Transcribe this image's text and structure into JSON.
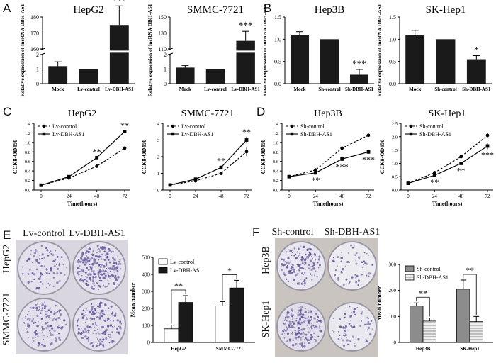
{
  "panel_labels": {
    "a": "A",
    "b": "B",
    "c": "C",
    "d": "D",
    "e": "E",
    "f": "F"
  },
  "colors": {
    "black": "#1a1a1a",
    "white": "#ffffff",
    "gray_bar": "#8c8c8c",
    "hatch": "#d8d8d8",
    "dish_purple": "#6a5a9c",
    "dish_bg": "#e4e1ec"
  },
  "chart_data": [
    {
      "id": "A1",
      "type": "bar",
      "title": "HepG2",
      "ylabel": "Relative expression of lncRNA DBH-AS1",
      "categories": [
        "Mock",
        "Lv-control",
        "Lv-DBH-AS1"
      ],
      "values": [
        1.2,
        1.0,
        175
      ],
      "errors": [
        0.3,
        0.0,
        12
      ],
      "broken_axis": {
        "lower": [
          0,
          2
        ],
        "upper": [
          160,
          180
        ]
      },
      "lower_ticks": [
        "0",
        "1",
        "2"
      ],
      "upper_ticks": [
        "160",
        "170",
        "180"
      ],
      "annotations": [
        {
          "category": "Lv-DBH-AS1",
          "text": "***"
        }
      ]
    },
    {
      "id": "A2",
      "type": "bar",
      "title": "SMMC-7721",
      "ylabel": "Relative expression of lncRNA DBH-AS1",
      "categories": [
        "Mock",
        "Lv-control",
        "Lv-DBH-AS1"
      ],
      "values": [
        1.1,
        1.0,
        120
      ],
      "errors": [
        0.15,
        0.0,
        12
      ],
      "broken_axis": {
        "lower": [
          0,
          2
        ],
        "upper": [
          110,
          150
        ]
      },
      "lower_ticks": [
        "0",
        "1",
        "2"
      ],
      "upper_ticks": [
        "110",
        "130",
        "150"
      ],
      "annotations": [
        {
          "category": "Lv-DBH-AS1",
          "text": "***"
        }
      ]
    },
    {
      "id": "B1",
      "type": "bar",
      "title": "Hep3B",
      "ylabel": "Relative expression of lncRNA DBH-AS1",
      "categories": [
        "Mock",
        "Sh-control",
        "Sh-DBH-AS1"
      ],
      "values": [
        1.1,
        1.0,
        0.2
      ],
      "errors": [
        0.07,
        0.0,
        0.12
      ],
      "ylim": [
        0,
        1.5
      ],
      "ticks": [
        "0.0",
        "0.5",
        "1.0",
        "1.5"
      ],
      "annotations": [
        {
          "category": "Sh-DBH-AS1",
          "text": "***"
        }
      ]
    },
    {
      "id": "B2",
      "type": "bar",
      "title": "SK-Hep1",
      "ylabel": "Relative expression of lncRNA DBH-AS1",
      "categories": [
        "Mock",
        "Sh-control",
        "Sh-DBH-AS1"
      ],
      "values": [
        1.1,
        1.0,
        0.55
      ],
      "errors": [
        0.1,
        0.0,
        0.08
      ],
      "ylim": [
        0,
        1.5
      ],
      "ticks": [
        "0.0",
        "0.5",
        "1.0",
        "1.5"
      ],
      "annotations": [
        {
          "category": "Sh-DBH-AS1",
          "text": "*"
        }
      ]
    },
    {
      "id": "C1",
      "type": "line",
      "title": "HepG2",
      "xlabel": "Time(hours)",
      "ylabel": "CCK8-OD450",
      "x": [
        0,
        24,
        48,
        72
      ],
      "ylim": [
        0,
        1.4
      ],
      "ticks": [
        "0.0",
        "0.2",
        "0.4",
        "0.6",
        "0.8",
        "1.0",
        "1.2",
        "1.4"
      ],
      "series": [
        {
          "name": "Lv-control",
          "values": [
            0.1,
            0.25,
            0.5,
            0.88
          ],
          "errors": [
            0.01,
            0.02,
            0.02,
            0.03
          ],
          "dashed": true
        },
        {
          "name": "Lv-DBH-AS1",
          "values": [
            0.1,
            0.28,
            0.68,
            1.23
          ],
          "errors": [
            0.01,
            0.02,
            0.02,
            0.02
          ],
          "dashed": false
        }
      ],
      "legend": "top-left",
      "annotations": [
        {
          "x": 48,
          "text": "**"
        },
        {
          "x": 72,
          "text": "**"
        }
      ]
    },
    {
      "id": "C2",
      "type": "line",
      "title": "SMMC-7721",
      "xlabel": "",
      "ylabel": "CCK8-OD450",
      "x": [
        0,
        24,
        48,
        72
      ],
      "ylim": [
        0,
        4
      ],
      "ticks": [
        "0",
        "1",
        "2",
        "3",
        "4"
      ],
      "series": [
        {
          "name": "Lv-control",
          "values": [
            0.3,
            0.55,
            1.0,
            2.3
          ],
          "errors": [
            0.02,
            0.05,
            0.1,
            0.25
          ],
          "dashed": true
        },
        {
          "name": "Lv-DBH-AS1",
          "values": [
            0.3,
            0.65,
            1.35,
            3.0
          ],
          "errors": [
            0.02,
            0.05,
            0.12,
            0.2
          ],
          "dashed": false
        }
      ],
      "legend": "top-left",
      "annotations": [
        {
          "x": 48,
          "text": "**"
        },
        {
          "x": 72,
          "text": "**"
        }
      ]
    },
    {
      "id": "D1",
      "type": "line",
      "title": "Hep3B",
      "xlabel": "Time(hours)",
      "ylabel": "CCK8-OD450",
      "x": [
        0,
        24,
        48,
        72
      ],
      "ylim": [
        0,
        1.4
      ],
      "ticks": [
        "0.0",
        "0.2",
        "0.4",
        "0.6",
        "0.8",
        "1.0",
        "1.2",
        "1.4"
      ],
      "series": [
        {
          "name": "Sh-control",
          "values": [
            0.28,
            0.42,
            0.88,
            1.15
          ],
          "errors": [
            0.02,
            0.03,
            0.04,
            0.03
          ],
          "dashed": true
        },
        {
          "name": "Sh-DBH-AS1",
          "values": [
            0.28,
            0.36,
            0.65,
            0.8
          ],
          "errors": [
            0.02,
            0.03,
            0.04,
            0.04
          ],
          "dashed": false
        }
      ],
      "legend": "top-left",
      "annotations": [
        {
          "x": 24,
          "text": "**"
        },
        {
          "x": 48,
          "text": "***"
        },
        {
          "x": 72,
          "text": "***"
        }
      ]
    },
    {
      "id": "D2",
      "type": "line",
      "title": "SK-Hep1",
      "xlabel": "Time(hours)",
      "ylabel": "CCK8-OD450",
      "x": [
        0,
        24,
        48,
        72
      ],
      "ylim": [
        0,
        2.5
      ],
      "ticks": [
        "0.0",
        "0.5",
        "1.0",
        "1.5",
        "2.0",
        "2.5"
      ],
      "series": [
        {
          "name": "Sh-control",
          "values": [
            0.25,
            0.65,
            1.25,
            2.05
          ],
          "errors": [
            0.02,
            0.05,
            0.06,
            0.08
          ],
          "dashed": true
        },
        {
          "name": "Sh-DBH-AS1",
          "values": [
            0.25,
            0.55,
            1.0,
            1.65
          ],
          "errors": [
            0.02,
            0.05,
            0.06,
            0.12
          ],
          "dashed": false
        }
      ],
      "legend": "top-left",
      "annotations": [
        {
          "x": 24,
          "text": "**"
        },
        {
          "x": 48,
          "text": "**"
        },
        {
          "x": 72,
          "text": "***"
        }
      ]
    },
    {
      "id": "E_bar",
      "type": "bar",
      "title": "",
      "ylabel": "Mean number",
      "categories": [
        "HepG2",
        "SMMC-7721"
      ],
      "series": [
        {
          "name": "Lv-control",
          "values": [
            80,
            215
          ],
          "errors": [
            22,
            25
          ]
        },
        {
          "name": "Lv-DBH-AS1",
          "values": [
            235,
            320
          ],
          "errors": [
            40,
            45
          ]
        }
      ],
      "ylim": [
        0,
        500
      ],
      "ticks": [
        "0",
        "100",
        "200",
        "300",
        "400",
        "500"
      ],
      "legend": "top-left",
      "annotations": [
        {
          "category": "HepG2",
          "text": "**"
        },
        {
          "category": "SMMC-7721",
          "text": "*"
        }
      ]
    },
    {
      "id": "F_bar",
      "type": "bar",
      "title": "",
      "ylabel": "Mean number",
      "categories": [
        "Hep3B",
        "SK-Hep1"
      ],
      "series": [
        {
          "name": "Sh-control",
          "values": [
            140,
            205
          ],
          "errors": [
            12,
            35
          ]
        },
        {
          "name": "Sh-DBH-AS1",
          "values": [
            82,
            80
          ],
          "errors": [
            12,
            20
          ]
        }
      ],
      "ylim": [
        0,
        300
      ],
      "ticks": [
        "0",
        "100",
        "200",
        "300"
      ],
      "legend": "top-left",
      "annotations": [
        {
          "category": "Hep3B",
          "text": "**"
        },
        {
          "category": "SK-Hep1",
          "text": "**"
        }
      ]
    }
  ],
  "photos": {
    "e": {
      "col1": "Lv-control",
      "col2": "Lv-DBH-AS1",
      "row1": "HepG2",
      "row2": "SMMC-7721"
    },
    "f": {
      "col1": "Sh-control",
      "col2": "Sh-DBH-AS1",
      "row1": "Hep3B",
      "row2": "SK-Hep1"
    }
  }
}
